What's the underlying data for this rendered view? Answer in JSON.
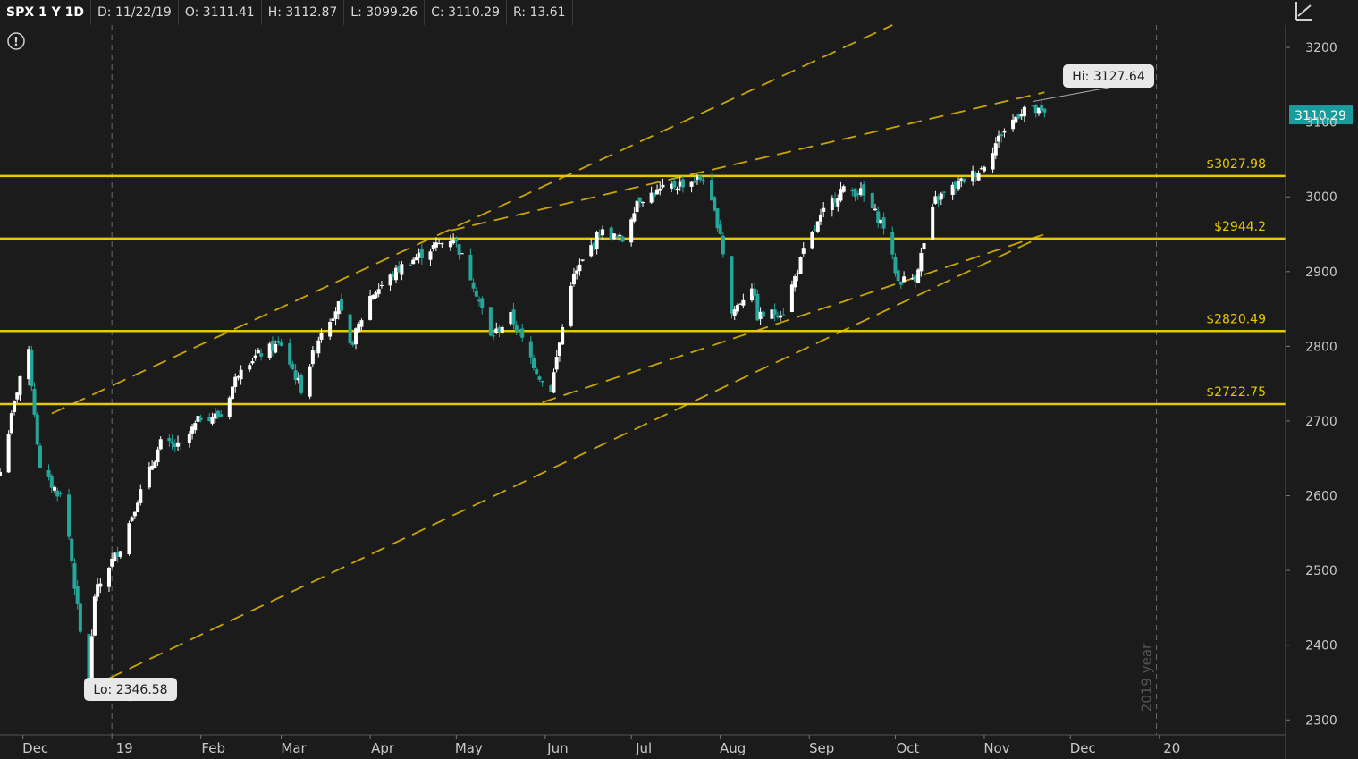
{
  "header": {
    "symbol": "SPX 1 Y 1D",
    "date": "D: 11/22/19",
    "open": "O: 3111.41",
    "high": "H: 3112.87",
    "low": "L: 3099.26",
    "close": "C: 3110.29",
    "range": "R: 13.61"
  },
  "icons": {
    "alert": "info-circle-icon",
    "corner": "drawing-tool-icon"
  },
  "colors": {
    "background": "#1b1b1b",
    "grid": "#6a6a6a",
    "up_candle": "#ffffff",
    "down_candle": "#26a69a",
    "level_line": "#e8c800",
    "trend_line": "#c8a600",
    "price_tag": "#1a9c9c"
  },
  "chart_data": {
    "type": "candlestick",
    "symbol": "SPX",
    "ylim": [
      2280,
      3230
    ],
    "y_ticks": [
      2300,
      2400,
      2500,
      2600,
      2700,
      2800,
      2900,
      3000,
      3100,
      3200
    ],
    "y_tick_labels": [
      "2300",
      "2400",
      "2500",
      "2600",
      "2700",
      "2800",
      "2900",
      "3000",
      "3100",
      "3200"
    ],
    "x_ticks": [
      {
        "label": "Dec",
        "date": "2018-12-01"
      },
      {
        "label": "19",
        "date": "2019-01-01"
      },
      {
        "label": "Feb",
        "date": "2019-02-01"
      },
      {
        "label": "Mar",
        "date": "2019-03-01"
      },
      {
        "label": "Apr",
        "date": "2019-04-01"
      },
      {
        "label": "May",
        "date": "2019-05-01"
      },
      {
        "label": "Jun",
        "date": "2019-06-01"
      },
      {
        "label": "Jul",
        "date": "2019-07-01"
      },
      {
        "label": "Aug",
        "date": "2019-08-01"
      },
      {
        "label": "Sep",
        "date": "2019-09-01"
      },
      {
        "label": "Oct",
        "date": "2019-10-01"
      },
      {
        "label": "Nov",
        "date": "2019-11-01"
      },
      {
        "label": "Dec",
        "date": "2019-12-01"
      },
      {
        "label": "20",
        "date": "2020-01-01"
      }
    ],
    "x_range": [
      "2018-11-23",
      "2020-02-14"
    ],
    "close_path": [
      [
        "2018-11-23",
        2632
      ],
      [
        "2018-11-30",
        2760
      ],
      [
        "2018-12-03",
        2790
      ],
      [
        "2018-12-07",
        2633
      ],
      [
        "2018-12-14",
        2600
      ],
      [
        "2018-12-17",
        2545
      ],
      [
        "2018-12-21",
        2416
      ],
      [
        "2018-12-24",
        2351
      ],
      [
        "2018-12-26",
        2467
      ],
      [
        "2018-12-31",
        2507
      ],
      [
        "2019-01-04",
        2531
      ],
      [
        "2019-01-10",
        2596
      ],
      [
        "2019-01-18",
        2670
      ],
      [
        "2019-01-25",
        2665
      ],
      [
        "2019-02-01",
        2706
      ],
      [
        "2019-02-08",
        2707
      ],
      [
        "2019-02-15",
        2775
      ],
      [
        "2019-02-25",
        2797
      ],
      [
        "2019-03-01",
        2803
      ],
      [
        "2019-03-08",
        2743
      ],
      [
        "2019-03-15",
        2822
      ],
      [
        "2019-03-21",
        2855
      ],
      [
        "2019-03-25",
        2798
      ],
      [
        "2019-04-01",
        2867
      ],
      [
        "2019-04-12",
        2907
      ],
      [
        "2019-04-23",
        2933
      ],
      [
        "2019-04-30",
        2946
      ],
      [
        "2019-05-07",
        2884
      ],
      [
        "2019-05-13",
        2812
      ],
      [
        "2019-05-20",
        2840
      ],
      [
        "2019-05-31",
        2752
      ],
      [
        "2019-06-03",
        2744
      ],
      [
        "2019-06-10",
        2886
      ],
      [
        "2019-06-20",
        2954
      ],
      [
        "2019-06-28",
        2942
      ],
      [
        "2019-07-03",
        2996
      ],
      [
        "2019-07-15",
        3014
      ],
      [
        "2019-07-26",
        3025
      ],
      [
        "2019-08-01",
        2953
      ],
      [
        "2019-08-05",
        2844
      ],
      [
        "2019-08-12",
        2882
      ],
      [
        "2019-08-14",
        2840
      ],
      [
        "2019-08-23",
        2847
      ],
      [
        "2019-08-30",
        2926
      ],
      [
        "2019-09-06",
        2979
      ],
      [
        "2019-09-12",
        3009
      ],
      [
        "2019-09-19",
        3006
      ],
      [
        "2019-09-27",
        2961
      ],
      [
        "2019-10-02",
        2887
      ],
      [
        "2019-10-08",
        2893
      ],
      [
        "2019-10-15",
        2996
      ],
      [
        "2019-10-25",
        3023
      ],
      [
        "2019-10-31",
        3038
      ],
      [
        "2019-11-07",
        3085
      ],
      [
        "2019-11-15",
        3120
      ],
      [
        "2019-11-22",
        3110
      ]
    ],
    "hi_label": "Hi: 3127.64",
    "hi_point": {
      "date": "2019-11-18",
      "value": 3127.64
    },
    "lo_label": "Lo: 2346.58",
    "lo_point": {
      "date": "2018-12-26",
      "value": 2346.58
    },
    "last_price_label": "3110.29",
    "last_price": 3110.29,
    "horizontal_levels": [
      {
        "value": 3027.98,
        "label": "$3027.98"
      },
      {
        "value": 2944.2,
        "label": "$2944.2"
      },
      {
        "value": 2820.49,
        "label": "$2820.49"
      },
      {
        "value": 2722.75,
        "label": "$2722.75"
      }
    ],
    "trend_lines": [
      {
        "from": [
          "2018-12-11",
          2710
        ],
        "to": [
          "2019-09-30",
          3230
        ]
      },
      {
        "from": [
          "2019-04-29",
          2955
        ],
        "to": [
          "2019-11-22",
          3140
        ]
      },
      {
        "from": [
          "2019-05-31",
          2725
        ],
        "to": [
          "2019-11-22",
          2950
        ]
      },
      {
        "from": [
          "2018-12-24",
          2343
        ],
        "to": [
          "2019-11-20",
          2945
        ]
      }
    ],
    "year_watermark": "2019 year",
    "year_watermark_date": "2019-12-31",
    "grid": "vertical dashed at months"
  }
}
